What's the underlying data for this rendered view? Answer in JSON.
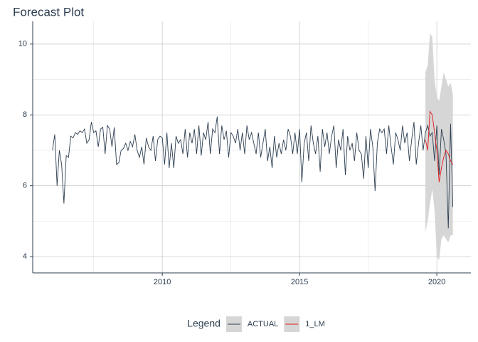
{
  "chart_data": {
    "type": "line",
    "title": "Forecast Plot",
    "legend_title": "Legend",
    "legend_position": "bottom",
    "grid": true,
    "xlim": [
      2005.28,
      2021.24
    ],
    "xticks": [
      2010,
      2015,
      2020
    ],
    "x_minor_ticks": [
      2007.5,
      2012.5,
      2017.5
    ],
    "ylim": [
      3.54,
      10.64
    ],
    "yticks": [
      4,
      6,
      8,
      10
    ],
    "y_minor_ticks": [
      5,
      7,
      9
    ],
    "series": [
      {
        "name": "ACTUAL",
        "color": "#2c3e50",
        "x": [
          2006,
          2006.083,
          2006.167,
          2006.25,
          2006.333,
          2006.417,
          2006.5,
          2006.583,
          2006.667,
          2006.75,
          2006.833,
          2006.917,
          2007,
          2007.083,
          2007.167,
          2007.25,
          2007.333,
          2007.417,
          2007.5,
          2007.583,
          2007.667,
          2007.75,
          2007.833,
          2007.917,
          2008,
          2008.083,
          2008.167,
          2008.25,
          2008.333,
          2008.417,
          2008.5,
          2008.583,
          2008.667,
          2008.75,
          2008.833,
          2008.917,
          2009,
          2009.083,
          2009.167,
          2009.25,
          2009.333,
          2009.417,
          2009.5,
          2009.583,
          2009.667,
          2009.75,
          2009.833,
          2009.917,
          2010,
          2010.083,
          2010.167,
          2010.25,
          2010.333,
          2010.417,
          2010.5,
          2010.583,
          2010.667,
          2010.75,
          2010.833,
          2010.917,
          2011,
          2011.083,
          2011.167,
          2011.25,
          2011.333,
          2011.417,
          2011.5,
          2011.583,
          2011.667,
          2011.75,
          2011.833,
          2011.917,
          2012,
          2012.083,
          2012.167,
          2012.25,
          2012.333,
          2012.417,
          2012.5,
          2012.583,
          2012.667,
          2012.75,
          2012.833,
          2012.917,
          2013,
          2013.083,
          2013.167,
          2013.25,
          2013.333,
          2013.417,
          2013.5,
          2013.583,
          2013.667,
          2013.75,
          2013.833,
          2013.917,
          2014,
          2014.083,
          2014.167,
          2014.25,
          2014.333,
          2014.417,
          2014.5,
          2014.583,
          2014.667,
          2014.75,
          2014.833,
          2014.917,
          2015,
          2015.083,
          2015.167,
          2015.25,
          2015.333,
          2015.417,
          2015.5,
          2015.583,
          2015.667,
          2015.75,
          2015.833,
          2015.917,
          2016,
          2016.083,
          2016.167,
          2016.25,
          2016.333,
          2016.417,
          2016.5,
          2016.583,
          2016.667,
          2016.75,
          2016.833,
          2016.917,
          2017,
          2017.083,
          2017.167,
          2017.25,
          2017.333,
          2017.417,
          2017.5,
          2017.583,
          2017.667,
          2017.75,
          2017.833,
          2017.917,
          2018,
          2018.083,
          2018.167,
          2018.25,
          2018.333,
          2018.417,
          2018.5,
          2018.583,
          2018.667,
          2018.75,
          2018.833,
          2018.917,
          2019,
          2019.083,
          2019.167,
          2019.25,
          2019.333,
          2019.417,
          2019.5,
          2019.583,
          2019.667,
          2019.75,
          2019.833,
          2019.917,
          2020,
          2020.083,
          2020.167,
          2020.25,
          2020.333,
          2020.417,
          2020.5,
          2020.583
        ],
        "values": [
          7.0,
          7.45,
          6.0,
          7.0,
          6.6,
          5.5,
          6.85,
          6.8,
          7.4,
          7.35,
          7.5,
          7.45,
          7.55,
          7.5,
          7.6,
          7.2,
          7.3,
          7.8,
          7.5,
          7.55,
          7.1,
          7.6,
          7.65,
          6.9,
          7.7,
          7.6,
          7.1,
          7.65,
          6.6,
          6.65,
          7.0,
          7.05,
          7.2,
          7.0,
          7.25,
          7.1,
          7.45,
          7.0,
          6.8,
          7.1,
          6.6,
          7.35,
          7.1,
          7.0,
          7.4,
          6.7,
          7.3,
          7.4,
          7.35,
          6.6,
          7.5,
          6.5,
          7.2,
          6.5,
          7.4,
          7.2,
          7.3,
          6.9,
          7.6,
          6.8,
          7.5,
          7.2,
          7.6,
          6.9,
          7.7,
          6.85,
          7.5,
          7.3,
          7.8,
          6.9,
          7.6,
          7.5,
          7.95,
          6.9,
          7.7,
          7.3,
          7.55,
          6.8,
          7.5,
          7.4,
          7.2,
          7.6,
          7.0,
          7.5,
          6.9,
          7.7,
          7.3,
          7.5,
          7.2,
          6.9,
          7.5,
          6.8,
          7.2,
          7.6,
          6.7,
          7.1,
          6.5,
          7.4,
          6.8,
          7.2,
          6.9,
          7.3,
          7.0,
          7.6,
          7.4,
          6.9,
          7.5,
          6.9,
          7.6,
          6.1,
          7.2,
          7.5,
          6.7,
          7.7,
          7.2,
          6.9,
          7.4,
          6.4,
          7.6,
          7.1,
          7.5,
          6.9,
          7.4,
          7.7,
          6.5,
          7.3,
          7.0,
          7.6,
          6.3,
          7.4,
          7.0,
          7.2,
          6.7,
          7.5,
          7.0,
          6.9,
          6.2,
          7.4,
          6.5,
          7.6,
          7.1,
          5.85,
          7.2,
          7.6,
          7.5,
          7.6,
          6.9,
          7.7,
          7.1,
          6.6,
          7.5,
          7.3,
          7.0,
          7.7,
          7.2,
          7.5,
          6.7,
          7.3,
          7.8,
          6.6,
          7.2,
          7.7,
          7.0,
          7.5,
          7.7,
          7.4,
          7.5,
          6.7,
          7.7,
          6.3,
          7.6,
          7.3,
          6.9,
          4.8,
          7.75,
          5.4
        ]
      },
      {
        "name": "1_LM",
        "color": "#e31a1c",
        "band_color": "#d6d6d6",
        "x": [
          2019.583,
          2019.667,
          2019.75,
          2019.833,
          2019.917,
          2020,
          2020.083,
          2020.167,
          2020.25,
          2020.333,
          2020.417,
          2020.5,
          2020.583
        ],
        "values": [
          7.3,
          7.0,
          8.1,
          8.0,
          7.5,
          7.0,
          6.1,
          6.5,
          6.8,
          7.0,
          6.9,
          6.7,
          6.6
        ],
        "upper": [
          9.2,
          9.4,
          10.3,
          10.2,
          9.0,
          8.5,
          8.4,
          8.8,
          9.2,
          9.0,
          8.8,
          8.9,
          8.6
        ],
        "lower": [
          4.7,
          5.0,
          5.5,
          5.9,
          5.3,
          4.0,
          3.9,
          4.5,
          4.6,
          4.5,
          4.4,
          4.6,
          4.6
        ]
      }
    ]
  }
}
